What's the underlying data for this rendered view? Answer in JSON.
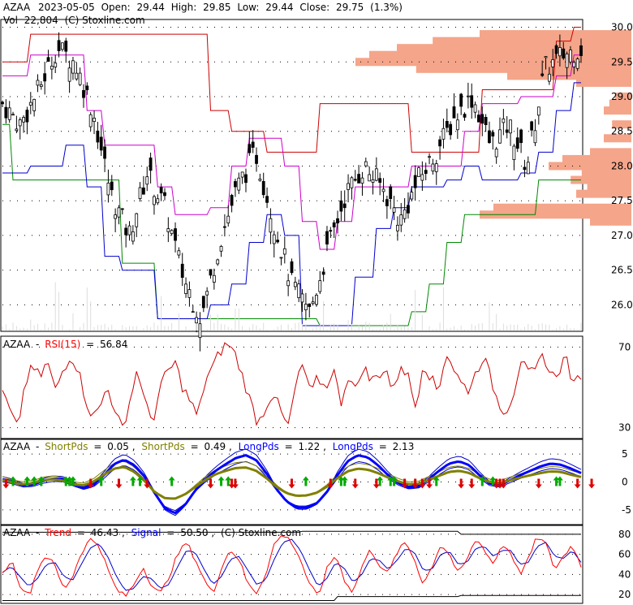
{
  "chart_data": [
    {
      "type": "candlestick",
      "header": {
        "symbol": "AZAA",
        "date": "2023-05-05",
        "open_label": "Open:",
        "open": "29.44",
        "high_label": "High:",
        "high": "29.85",
        "low_label": "Low:",
        "low": "29.44",
        "close_label": "Close:",
        "close": "29.75",
        "change": "(1.3%)",
        "volume_label": "Vol",
        "volume": "22,804",
        "credit": "(C) Stoxline.com"
      },
      "y_ticks": [
        "30.0",
        "29.5",
        "29.0",
        "28.5",
        "28.0",
        "27.5",
        "27.0",
        "26.5",
        "26.0"
      ],
      "ylim": [
        25.63,
        30.1
      ],
      "price_path": [
        28.9,
        28.6,
        29.1,
        29.7,
        29.5,
        28.8,
        27.6,
        27.0,
        27.9,
        27.4,
        26.4,
        25.8,
        26.9,
        27.7,
        28.2,
        27.2,
        26.3,
        25.9,
        26.8,
        27.6,
        28.0,
        27.7,
        27.2,
        27.8,
        28.2,
        28.7,
        29.0,
        28.3,
        28.6,
        28.0,
        29.4,
        29.6,
        29.7
      ],
      "upper_channel_red": [
        29.5,
        29.5,
        29.9,
        29.9,
        29.9,
        29.9,
        29.9,
        29.9,
        29.9,
        29.9,
        29.9,
        29.9,
        28.8,
        28.5,
        28.5,
        28.2,
        28.2,
        28.2,
        28.9,
        28.9,
        28.9,
        28.9,
        28.9,
        28.2,
        28.2,
        28.2,
        28.2,
        29.1,
        29.1,
        29.1,
        29.1,
        29.8,
        30.0
      ],
      "mid_channel_magenta": [
        29.3,
        29.3,
        29.6,
        29.6,
        29.6,
        28.8,
        28.3,
        28.3,
        28.3,
        27.7,
        27.3,
        27.3,
        27.4,
        28.0,
        28.4,
        28.4,
        28.0,
        27.2,
        26.8,
        27.2,
        27.7,
        27.7,
        27.7,
        28.0,
        28.0,
        28.0,
        28.5,
        28.9,
        28.9,
        29.0,
        29.0,
        29.3,
        29.6
      ],
      "lower_channel_blue": [
        27.9,
        27.9,
        28.0,
        28.0,
        28.3,
        27.7,
        26.7,
        26.5,
        26.5,
        25.8,
        25.8,
        25.8,
        26.0,
        26.3,
        26.9,
        27.3,
        27.0,
        25.7,
        25.7,
        25.7,
        26.4,
        27.1,
        27.4,
        27.7,
        27.7,
        27.8,
        28.0,
        27.8,
        27.8,
        27.9,
        28.2,
        28.8,
        29.2
      ],
      "lowest_channel_green": [
        28.6,
        27.8,
        27.8,
        27.8,
        27.8,
        27.8,
        27.8,
        26.6,
        26.6,
        25.8,
        25.8,
        25.8,
        25.8,
        25.8,
        25.8,
        25.8,
        25.8,
        25.8,
        25.7,
        25.7,
        25.7,
        25.7,
        25.7,
        25.9,
        26.3,
        26.9,
        27.3,
        27.3,
        27.3,
        27.3,
        27.8,
        27.8,
        27.8
      ],
      "volume_profile": [
        [
          29.9,
          0.55
        ],
        [
          29.8,
          0.72
        ],
        [
          29.7,
          0.85
        ],
        [
          29.6,
          0.95
        ],
        [
          29.5,
          1.0
        ],
        [
          29.4,
          0.78
        ],
        [
          29.3,
          0.45
        ],
        [
          29.2,
          0.2
        ],
        [
          29.0,
          0.06
        ],
        [
          28.9,
          0.08
        ],
        [
          28.8,
          0.1
        ],
        [
          28.6,
          0.07
        ],
        [
          28.4,
          0.1
        ],
        [
          28.2,
          0.15
        ],
        [
          28.1,
          0.25
        ],
        [
          28.0,
          0.3
        ],
        [
          27.9,
          0.18
        ],
        [
          27.8,
          0.22
        ],
        [
          27.7,
          0.16
        ],
        [
          27.6,
          0.2
        ],
        [
          27.4,
          0.5
        ],
        [
          27.3,
          0.55
        ],
        [
          27.2,
          0.15
        ]
      ]
    },
    {
      "type": "line",
      "title_symbol": "AZAA",
      "series_name": "RSI(15)",
      "value": "56.84",
      "y_ticks": [
        "70",
        "30"
      ],
      "ylim": [
        25,
        75
      ],
      "path": [
        48,
        38,
        29,
        52,
        60,
        55,
        63,
        48,
        58,
        66,
        60,
        45,
        35,
        40,
        52,
        36,
        30,
        44,
        60,
        41,
        33,
        50,
        58,
        62,
        50,
        43,
        35,
        54,
        60,
        68,
        72,
        66,
        55,
        43,
        32,
        40,
        48,
        38,
        30,
        50,
        62,
        46,
        55,
        49,
        60,
        42,
        56,
        48,
        61,
        53,
        56,
        60,
        47,
        62,
        55,
        40,
        63,
        55,
        47,
        68,
        60,
        52,
        49,
        57,
        66,
        54,
        42,
        38,
        47,
        64,
        56,
        58,
        67,
        55,
        58,
        66,
        50,
        57
      ]
    },
    {
      "type": "line",
      "title_symbol": "AZAA",
      "series": [
        {
          "name": "ShortPds",
          "value": "0.05",
          "color": "#808000"
        },
        {
          "name": "ShortPds",
          "value": "0.49",
          "color": "#808000"
        },
        {
          "name": "LongPds",
          "value": "1.22",
          "color": "#0000ff"
        },
        {
          "name": "LongPds",
          "value": "2.13",
          "color": "#0000ff"
        }
      ],
      "y_ticks": [
        "5",
        "0",
        "-5"
      ],
      "ylim": [
        -7.5,
        7.5
      ],
      "long_path": [
        0.5,
        0.1,
        -0.6,
        -0.5,
        0.2,
        0.6,
        0.5,
        -0.4,
        -1.1,
        -0.5,
        1.2,
        3.2,
        4.0,
        3.0,
        1.0,
        -2.0,
        -4.7,
        -5.6,
        -4.1,
        -1.5,
        0.5,
        2.0,
        3.2,
        4.3,
        4.8,
        3.9,
        1.6,
        -1.3,
        -3.5,
        -4.6,
        -4.6,
        -3.8,
        -1.7,
        1.2,
        3.7,
        4.8,
        4.4,
        3.0,
        1.2,
        -0.2,
        -1.0,
        -0.8,
        0.5,
        2.0,
        3.3,
        3.7,
        3.0,
        1.2,
        -0.3,
        -0.6,
        0.3,
        1.2,
        2.0,
        2.8,
        3.3,
        3.1,
        2.4,
        1.6
      ],
      "short_path": [
        0.4,
        -0.1,
        -0.4,
        -0.2,
        0.3,
        0.5,
        0.2,
        -0.4,
        -0.6,
        0.1,
        1.3,
        2.4,
        2.7,
        1.8,
        0.2,
        -1.8,
        -2.9,
        -3.0,
        -2.2,
        -0.9,
        0.4,
        1.4,
        2.0,
        2.5,
        2.6,
        2.0,
        0.7,
        -0.9,
        -2.0,
        -2.5,
        -2.4,
        -1.9,
        -0.8,
        0.7,
        1.9,
        2.4,
        2.2,
        1.6,
        0.8,
        0.1,
        -0.4,
        -0.3,
        0.4,
        1.1,
        1.8,
        2.0,
        1.6,
        0.7,
        0.0,
        -0.2,
        0.3,
        0.8,
        1.2,
        1.6,
        1.9,
        1.8,
        1.3,
        0.9
      ],
      "buy_signal_index": [
        3,
        7,
        9,
        11,
        18,
        19,
        20,
        28,
        37,
        39,
        48,
        62,
        64,
        86,
        96,
        97,
        107,
        110,
        111,
        123,
        136,
        139,
        157,
        158
      ],
      "sell_signal_index": [
        1,
        25,
        33,
        41,
        59,
        65,
        66,
        82,
        93,
        100,
        106,
        114,
        117,
        119,
        121,
        130,
        133,
        140,
        141,
        142,
        152,
        163,
        167
      ]
    },
    {
      "type": "line",
      "title_symbol": "AZAA",
      "series": [
        {
          "name": "Trend",
          "value": "46.43",
          "color": "#ff0000"
        },
        {
          "name": "Signal",
          "value": "50.50",
          "color": "#0000ff"
        }
      ],
      "credit": "(C) Stoxline.com",
      "y_ticks": [
        "80",
        "60",
        "40",
        "20"
      ],
      "ylim": [
        12,
        88
      ],
      "trend_path": [
        40,
        55,
        30,
        18,
        45,
        60,
        48,
        25,
        38,
        62,
        75,
        70,
        45,
        25,
        18,
        30,
        48,
        30,
        20,
        38,
        60,
        72,
        55,
        35,
        20,
        48,
        65,
        55,
        30,
        22,
        40,
        70,
        80,
        72,
        55,
        30,
        18,
        45,
        60,
        35,
        22,
        48,
        65,
        50,
        40,
        62,
        72,
        55,
        30,
        48,
        70,
        60,
        40,
        55,
        75,
        65,
        50,
        70,
        62,
        40,
        55,
        78,
        70,
        45,
        58,
        70,
        48
      ],
      "signal_path": [
        42,
        48,
        38,
        28,
        36,
        50,
        52,
        38,
        34,
        50,
        66,
        71,
        58,
        38,
        24,
        26,
        38,
        36,
        26,
        30,
        48,
        64,
        62,
        45,
        30,
        38,
        55,
        58,
        44,
        30,
        34,
        55,
        72,
        75,
        64,
        45,
        28,
        36,
        52,
        46,
        32,
        40,
        56,
        54,
        45,
        54,
        66,
        62,
        44,
        45,
        60,
        63,
        50,
        52,
        66,
        68,
        58,
        64,
        64,
        50,
        52,
        68,
        72,
        58,
        56,
        64,
        52
      ]
    }
  ]
}
